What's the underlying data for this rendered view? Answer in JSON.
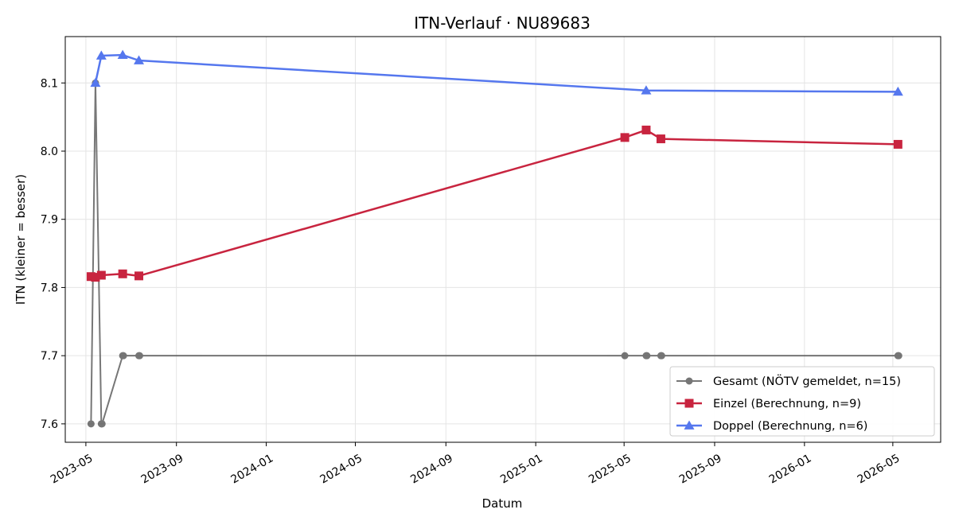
{
  "chart_data": {
    "type": "line",
    "title": "ITN-Verlauf · NU89683",
    "xlabel": "Datum",
    "ylabel": "ITN  (kleiner = besser)",
    "x_axis_type": "date",
    "xlim": [
      "2023-04-03",
      "2026-07-05"
    ],
    "ylim": [
      7.573,
      8.168
    ],
    "x_ticks": [
      "2023-05",
      "2023-09",
      "2024-01",
      "2024-05",
      "2024-09",
      "2025-01",
      "2025-05",
      "2025-09",
      "2026-01",
      "2026-05"
    ],
    "y_ticks": [
      7.6,
      7.7,
      7.8,
      7.9,
      8.0,
      8.1
    ],
    "grid": true,
    "legend_position": "lower-right",
    "series": [
      {
        "name": "Gesamt (NÖTV gemeldet, n=15)",
        "color": "#555555",
        "marker": "circle",
        "points": [
          {
            "x": "2023-05-08",
            "y": 7.6
          },
          {
            "x": "2023-05-14",
            "y": 8.1
          },
          {
            "x": "2023-05-22",
            "y": 7.6
          },
          {
            "x": "2023-05-23",
            "y": 7.6
          },
          {
            "x": "2023-06-20",
            "y": 7.7
          },
          {
            "x": "2023-06-21",
            "y": 7.7
          },
          {
            "x": "2023-07-12",
            "y": 7.7
          },
          {
            "x": "2023-07-13",
            "y": 7.7
          },
          {
            "x": "2025-05-02",
            "y": 7.7
          },
          {
            "x": "2025-05-31",
            "y": 7.7
          },
          {
            "x": "2025-06-01",
            "y": 7.7
          },
          {
            "x": "2025-06-20",
            "y": 7.7
          },
          {
            "x": "2025-06-21",
            "y": 7.7
          },
          {
            "x": "2026-05-08",
            "y": 7.7
          },
          {
            "x": "2026-05-09",
            "y": 7.7
          }
        ]
      },
      {
        "name": "Einzel (Berechnung, n=9)",
        "color": "#c8243f",
        "marker": "square",
        "points": [
          {
            "x": "2023-05-08",
            "y": 7.816
          },
          {
            "x": "2023-05-14",
            "y": 7.815
          },
          {
            "x": "2023-05-22",
            "y": 7.818
          },
          {
            "x": "2023-06-20",
            "y": 7.82
          },
          {
            "x": "2023-07-12",
            "y": 7.817
          },
          {
            "x": "2025-05-02",
            "y": 8.02
          },
          {
            "x": "2025-05-31",
            "y": 8.031
          },
          {
            "x": "2025-06-20",
            "y": 8.018
          },
          {
            "x": "2026-05-08",
            "y": 8.01
          }
        ]
      },
      {
        "name": "Doppel (Berechnung, n=6)",
        "color": "#5577ee",
        "marker": "triangle",
        "points": [
          {
            "x": "2023-05-14",
            "y": 8.1
          },
          {
            "x": "2023-05-22",
            "y": 8.14
          },
          {
            "x": "2023-06-20",
            "y": 8.141
          },
          {
            "x": "2023-07-12",
            "y": 8.133
          },
          {
            "x": "2025-05-31",
            "y": 8.089
          },
          {
            "x": "2026-05-08",
            "y": 8.087
          }
        ]
      }
    ]
  }
}
